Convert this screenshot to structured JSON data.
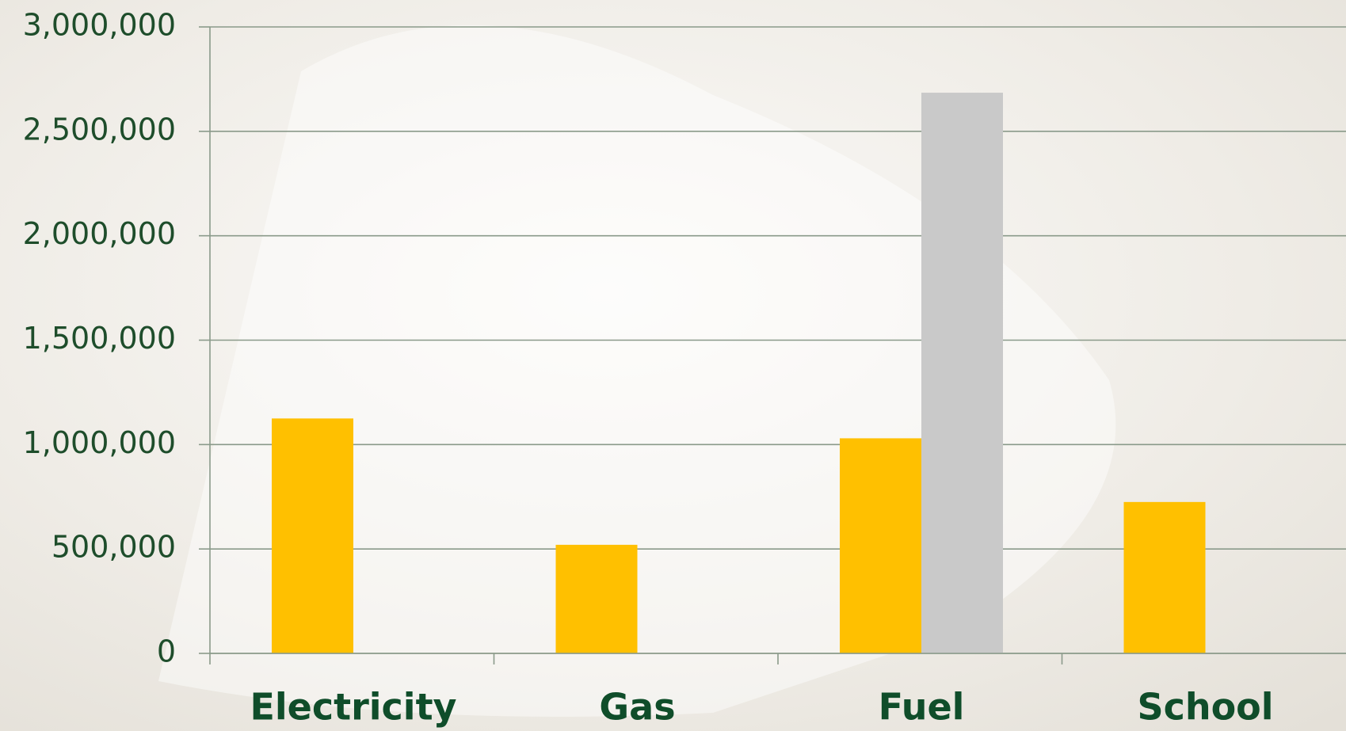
{
  "chart_data": {
    "type": "bar",
    "categories": [
      "Electricity",
      "Gas",
      "Fuel",
      "School"
    ],
    "series": [
      {
        "color": "#ffc000",
        "values": [
          1125000,
          520000,
          1030000,
          725000
        ]
      },
      {
        "color": "#c9c9c9",
        "values": [
          null,
          null,
          2685000,
          null
        ]
      }
    ],
    "ylim": [
      0,
      3000000
    ],
    "yticks": [
      0,
      {
        "value": 500000,
        "label": "500,000"
      },
      {
        "value": 1000000,
        "label": "1,000,000"
      },
      {
        "value": 1500000,
        "label": "1,500,000"
      },
      {
        "value": 2000000,
        "label": "2,000,000"
      },
      {
        "value": 2500000,
        "label": "2,500,000"
      },
      {
        "value": 3000000,
        "label": "3,000,000"
      }
    ],
    "grid": true
  }
}
